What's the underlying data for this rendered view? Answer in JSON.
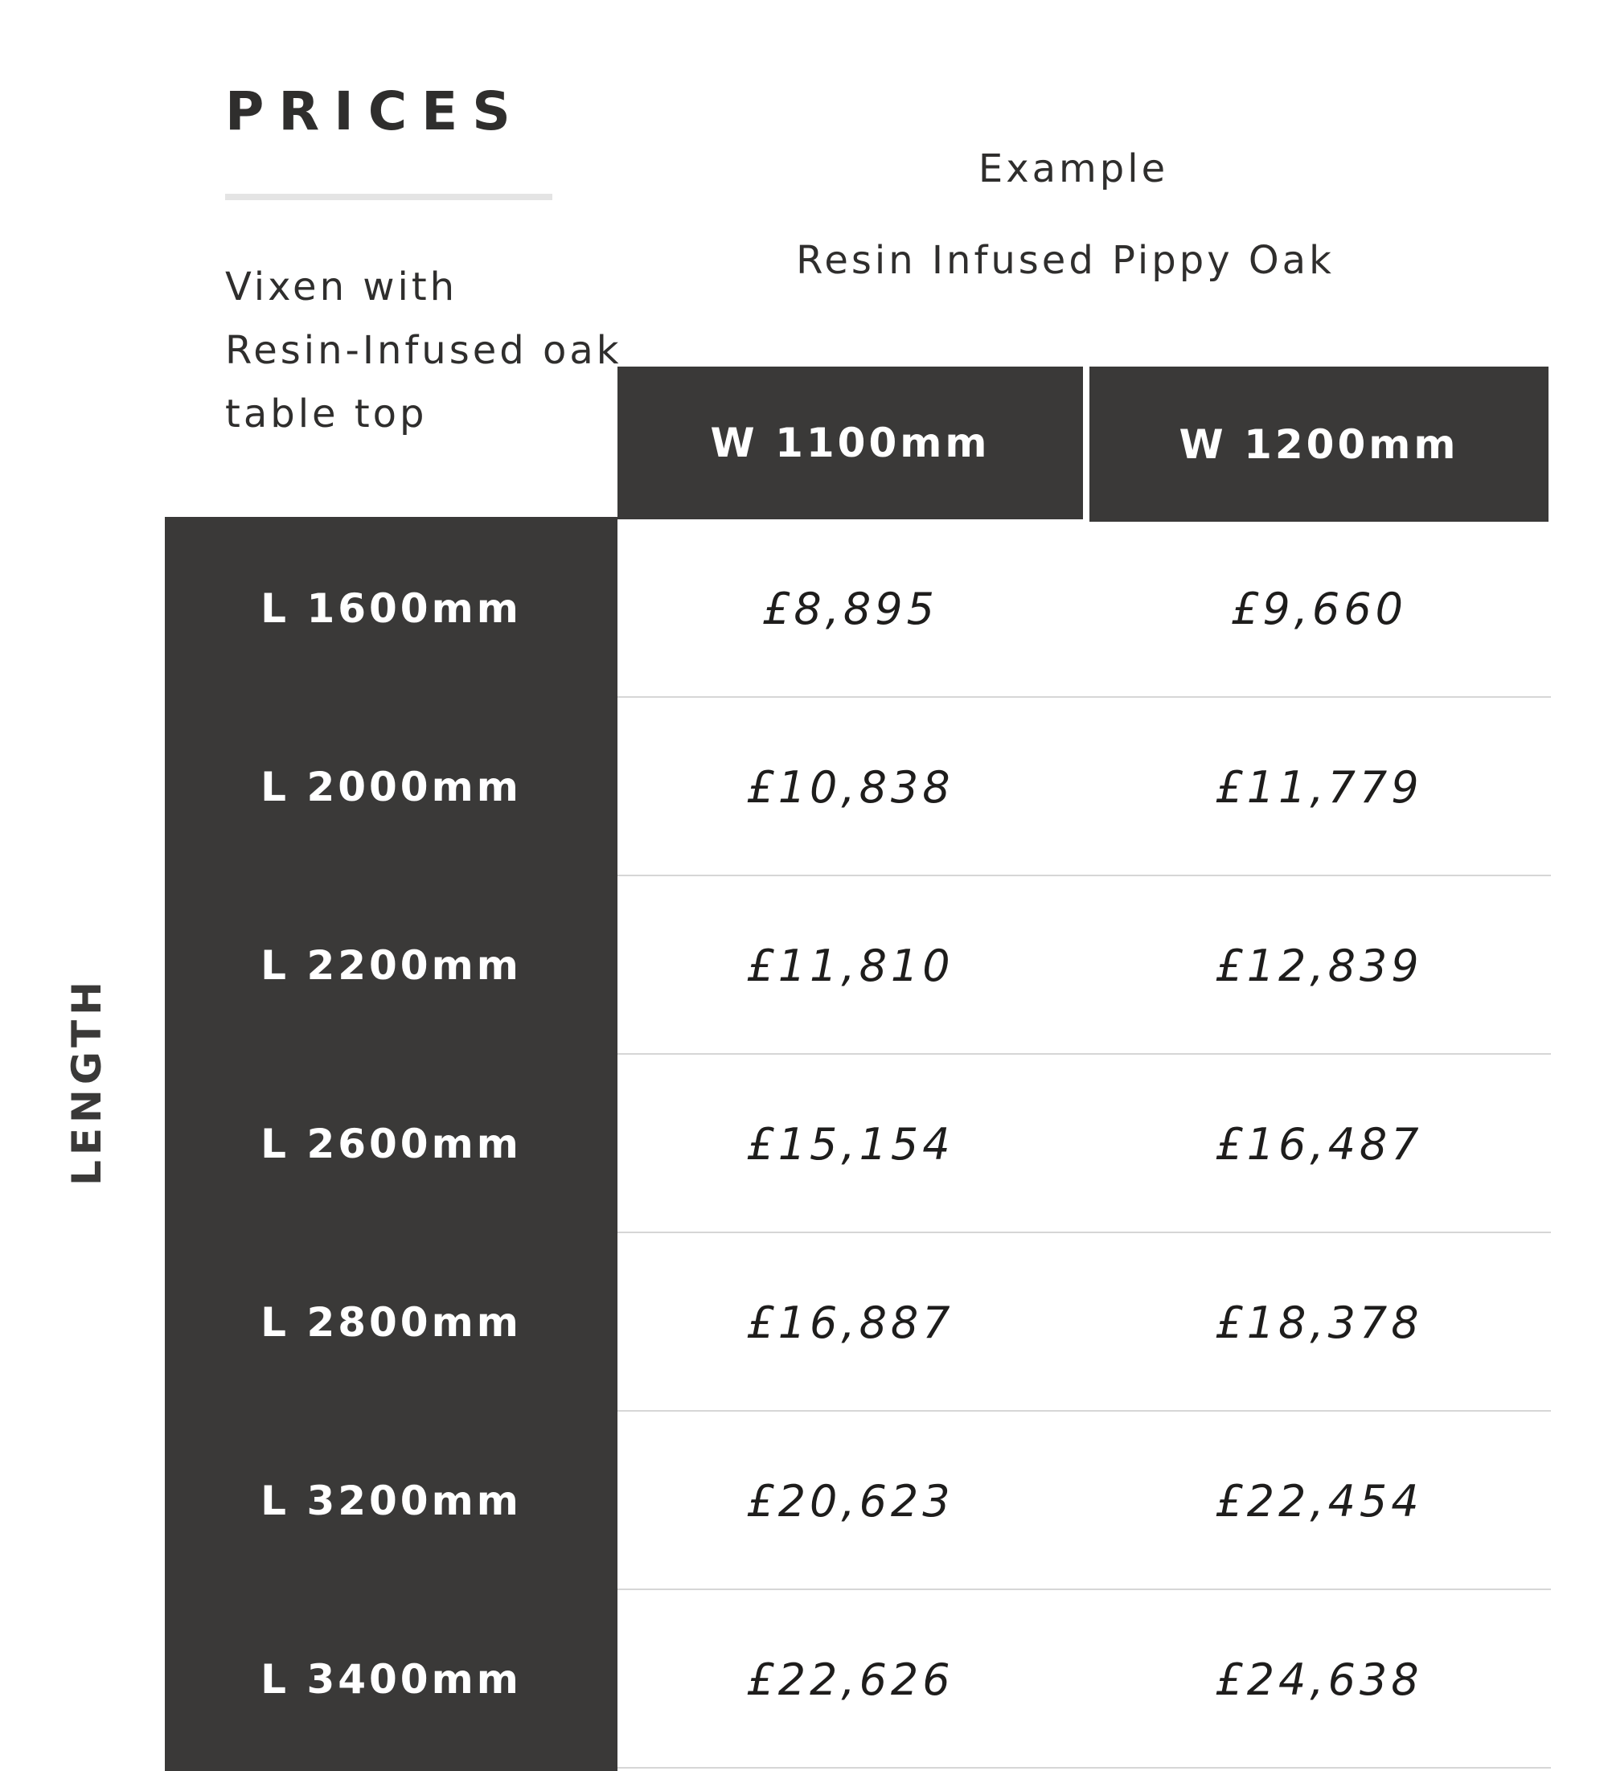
{
  "title": "PRICES",
  "example_label": "Example",
  "material": "Resin Infused Pippy Oak",
  "description": [
    "Vixen with",
    "Resin-Infused oak",
    "table top"
  ],
  "axis_label": "LENGTH",
  "columns": [
    "W 1100mm",
    "W 1200mm"
  ],
  "rows": [
    {
      "length": "L 1600mm",
      "prices": [
        "£8,895",
        "£9,660"
      ]
    },
    {
      "length": "L 2000mm",
      "prices": [
        "£10,838",
        "£11,779"
      ]
    },
    {
      "length": "L 2200mm",
      "prices": [
        "£11,810",
        "£12,839"
      ]
    },
    {
      "length": "L 2600mm",
      "prices": [
        "£15,154",
        "£16,487"
      ]
    },
    {
      "length": "L 2800mm",
      "prices": [
        "£16,887",
        "£18,378"
      ]
    },
    {
      "length": "L 3200mm",
      "prices": [
        "£20,623",
        "£22,454"
      ]
    },
    {
      "length": "L 3400mm",
      "prices": [
        "£22,626",
        "£24,638"
      ]
    }
  ],
  "colors": {
    "header_bg": "#3a3938",
    "text": "#2f2e2d",
    "divider": "#d6d6d6"
  }
}
